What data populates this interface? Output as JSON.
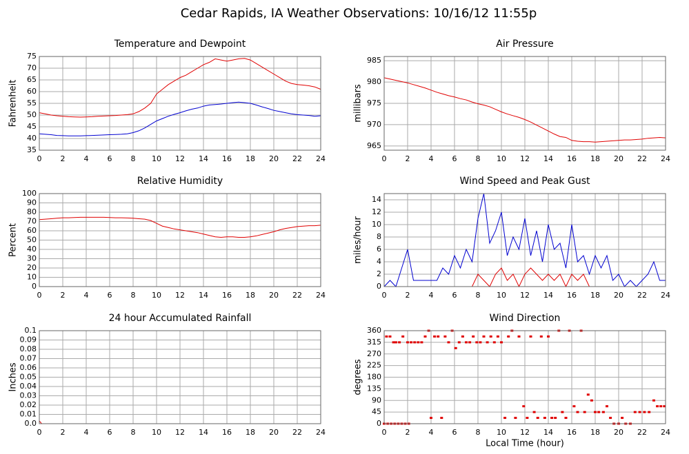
{
  "title": "Cedar Rapids, IA Weather Observations: 10/16/12 11:55p",
  "chart_data": [
    {
      "type": "line",
      "title": "Temperature and Dewpoint",
      "ylabel": "Fahrenheit",
      "x": [
        0,
        0.5,
        1,
        1.5,
        2,
        2.5,
        3,
        3.5,
        4,
        4.5,
        5,
        5.5,
        6,
        6.5,
        7,
        7.5,
        8,
        8.5,
        9,
        9.5,
        10,
        10.5,
        11,
        11.5,
        12,
        12.5,
        13,
        13.5,
        14,
        14.5,
        15,
        15.5,
        16,
        16.5,
        17,
        17.5,
        18,
        18.5,
        19,
        19.5,
        20,
        20.5,
        21,
        21.5,
        22,
        22.5,
        23,
        23.5,
        24
      ],
      "series": [
        {
          "color": "#e00000",
          "values": [
            51,
            50.5,
            50,
            49.7,
            49.5,
            49.3,
            49.2,
            49.1,
            49.2,
            49.3,
            49.5,
            49.6,
            49.7,
            49.8,
            50,
            50.2,
            50.5,
            51.5,
            53,
            55,
            59,
            61,
            63,
            64.5,
            66,
            67,
            68.5,
            70,
            71.5,
            72.5,
            74,
            73.5,
            73,
            73.5,
            74,
            74.2,
            73.5,
            72,
            70.5,
            69,
            67.5,
            66,
            64.5,
            63.5,
            63,
            62.8,
            62.5,
            62,
            61
          ]
        },
        {
          "color": "#0000d0",
          "values": [
            42,
            41.8,
            41.6,
            41.3,
            41.2,
            41.1,
            41.1,
            41.1,
            41.2,
            41.3,
            41.4,
            41.5,
            41.6,
            41.7,
            41.8,
            42,
            42.5,
            43.3,
            44.5,
            46,
            47.5,
            48.5,
            49.5,
            50.3,
            51,
            51.8,
            52.5,
            53,
            53.8,
            54.3,
            54.5,
            54.7,
            55,
            55.3,
            55.5,
            55.3,
            55,
            54.3,
            53.5,
            52.8,
            52,
            51.5,
            51,
            50.5,
            50.2,
            50,
            49.8,
            49.5,
            49.7
          ]
        }
      ],
      "xlim": [
        0,
        24
      ],
      "xticks": [
        0,
        2,
        4,
        6,
        8,
        10,
        12,
        14,
        16,
        18,
        20,
        22,
        24
      ],
      "ylim": [
        35,
        75
      ],
      "yticks": [
        35,
        40,
        45,
        50,
        55,
        60,
        65,
        70,
        75
      ],
      "grid": true
    },
    {
      "type": "line",
      "title": "Air Pressure",
      "ylabel": "millibars",
      "x": [
        0,
        0.5,
        1,
        1.5,
        2,
        2.5,
        3,
        3.5,
        4,
        4.5,
        5,
        5.5,
        6,
        6.5,
        7,
        7.5,
        8,
        8.5,
        9,
        9.5,
        10,
        10.5,
        11,
        11.5,
        12,
        12.5,
        13,
        13.5,
        14,
        14.5,
        15,
        15.5,
        16,
        16.5,
        17,
        17.5,
        18,
        18.5,
        19,
        19.5,
        20,
        20.5,
        21,
        21.5,
        22,
        22.5,
        23,
        23.5,
        24
      ],
      "series": [
        {
          "color": "#e00000",
          "values": [
            981,
            980.7,
            980.4,
            980.1,
            979.8,
            979.4,
            979,
            978.6,
            978.1,
            977.6,
            977.2,
            976.8,
            976.5,
            976.1,
            975.8,
            975.3,
            974.9,
            974.6,
            974.2,
            973.6,
            973,
            972.5,
            972.1,
            971.7,
            971.2,
            970.6,
            969.9,
            969.2,
            968.5,
            967.8,
            967.2,
            967,
            966.3,
            966.1,
            966,
            966,
            965.9,
            966,
            966.1,
            966.2,
            966.3,
            966.4,
            966.4,
            966.5,
            966.6,
            966.8,
            966.9,
            967,
            966.9
          ]
        }
      ],
      "xlim": [
        0,
        24
      ],
      "xticks": [
        0,
        2,
        4,
        6,
        8,
        10,
        12,
        14,
        16,
        18,
        20,
        22,
        24
      ],
      "ylim": [
        964,
        986
      ],
      "yticks": [
        965,
        970,
        975,
        980,
        985
      ],
      "grid": true
    },
    {
      "type": "line",
      "title": "Relative Humidity",
      "ylabel": "Percent",
      "x": [
        0,
        0.5,
        1,
        1.5,
        2,
        2.5,
        3,
        3.5,
        4,
        4.5,
        5,
        5.5,
        6,
        6.5,
        7,
        7.5,
        8,
        8.5,
        9,
        9.5,
        10,
        10.5,
        11,
        11.5,
        12,
        12.5,
        13,
        13.5,
        14,
        14.5,
        15,
        15.5,
        16,
        16.5,
        17,
        17.5,
        18,
        18.5,
        19,
        19.5,
        20,
        20.5,
        21,
        21.5,
        22,
        22.5,
        23,
        23.5,
        24
      ],
      "series": [
        {
          "color": "#e00000",
          "values": [
            72,
            72.5,
            73,
            73.5,
            74,
            74,
            74.3,
            74.5,
            74.5,
            74.5,
            74.5,
            74.5,
            74.3,
            74,
            74,
            73.8,
            73.5,
            73,
            72.5,
            71,
            68,
            65,
            63.5,
            62,
            61,
            60,
            59,
            58,
            56.5,
            55,
            53.5,
            53,
            53.5,
            53.5,
            53,
            53,
            53.5,
            54.5,
            56,
            57.5,
            59,
            61,
            62.5,
            63.5,
            64.5,
            65,
            65.5,
            65.5,
            66
          ]
        }
      ],
      "xlim": [
        0,
        24
      ],
      "xticks": [
        0,
        2,
        4,
        6,
        8,
        10,
        12,
        14,
        16,
        18,
        20,
        22,
        24
      ],
      "ylim": [
        0,
        100
      ],
      "yticks": [
        0,
        10,
        20,
        30,
        40,
        50,
        60,
        70,
        80,
        90,
        100
      ],
      "grid": true
    },
    {
      "type": "line",
      "title": "Wind Speed and Peak Gust",
      "ylabel": "miles/hour",
      "x": [
        0,
        0.5,
        1,
        1.5,
        2,
        2.5,
        3,
        3.5,
        4,
        4.5,
        5,
        5.5,
        6,
        6.5,
        7,
        7.5,
        8,
        8.5,
        9,
        9.5,
        10,
        10.5,
        11,
        11.5,
        12,
        12.5,
        13,
        13.5,
        14,
        14.5,
        15,
        15.5,
        16,
        16.5,
        17,
        17.5,
        18,
        18.5,
        19,
        19.5,
        20,
        20.5,
        21,
        21.5,
        22,
        22.5,
        23,
        23.5,
        24
      ],
      "series": [
        {
          "color": "#0000d0",
          "values": [
            0,
            1,
            0,
            3,
            6,
            1,
            1,
            1,
            1,
            1,
            3,
            2,
            5,
            3,
            6,
            4,
            11,
            15,
            7,
            9,
            12,
            5,
            8,
            6,
            11,
            5,
            9,
            4,
            10,
            6,
            7,
            3,
            10,
            4,
            5,
            2,
            5,
            3,
            5,
            1,
            2,
            0,
            1,
            0,
            1,
            2,
            4,
            1,
            1
          ]
        },
        {
          "color": "#e00000",
          "values": [
            0,
            0,
            0,
            0,
            0,
            0,
            0,
            0,
            0,
            0,
            0,
            0,
            0,
            0,
            0,
            0,
            2,
            1,
            0,
            2,
            3,
            1,
            2,
            0,
            2,
            3,
            2,
            1,
            2,
            1,
            2,
            0,
            2,
            1,
            2,
            0,
            0,
            0,
            0,
            0,
            0,
            0,
            0,
            0,
            0,
            0,
            0,
            0,
            0
          ]
        }
      ],
      "xlim": [
        0,
        24
      ],
      "xticks": [
        0,
        2,
        4,
        6,
        8,
        10,
        12,
        14,
        16,
        18,
        20,
        22,
        24
      ],
      "ylim": [
        0,
        15
      ],
      "yticks": [
        0,
        2,
        4,
        6,
        8,
        10,
        12,
        14
      ],
      "grid": true
    },
    {
      "type": "line",
      "title": "24 hour Accumulated Rainfall",
      "ylabel": "Inches",
      "x": [
        0,
        0.2,
        24
      ],
      "series": [
        {
          "color": "#e00000",
          "values": [
            0.003,
            0,
            0
          ]
        }
      ],
      "xlim": [
        0,
        24
      ],
      "xticks": [
        0,
        2,
        4,
        6,
        8,
        10,
        12,
        14,
        16,
        18,
        20,
        22,
        24
      ],
      "ylim": [
        0,
        0.1
      ],
      "yticks": [
        {
          "value": 0,
          "label": "0.0"
        },
        0.01,
        0.02,
        0.03,
        0.04,
        0.05,
        0.06,
        0.07,
        0.08,
        0.09,
        0.1
      ],
      "grid": true
    },
    {
      "type": "scatter",
      "title": "Wind Direction",
      "ylabel": "degrees",
      "xlabel": "Local Time (hour)",
      "x": [
        0,
        0.3,
        0.6,
        0.9,
        1.2,
        1.5,
        1.8,
        2.1,
        0.2,
        0.5,
        0.8,
        1.0,
        1.3,
        1.6,
        2.0,
        2.3,
        2.6,
        2.9,
        3.2,
        3.5,
        3.8,
        4.0,
        4.3,
        4.6,
        4.9,
        5.2,
        5.5,
        5.8,
        6.1,
        6.4,
        6.7,
        7.0,
        7.3,
        7.6,
        7.9,
        8.2,
        8.5,
        8.8,
        9.1,
        9.4,
        9.7,
        10.0,
        10.3,
        10.6,
        10.9,
        11.2,
        11.5,
        11.9,
        12.2,
        12.5,
        12.8,
        13.1,
        13.4,
        13.7,
        14.0,
        14.3,
        14.6,
        14.9,
        15.2,
        15.5,
        15.8,
        16.2,
        16.5,
        16.8,
        17.1,
        17.4,
        17.7,
        18.0,
        18.3,
        18.7,
        19.0,
        19.3,
        19.6,
        20.0,
        20.3,
        20.6,
        21.0,
        21.4,
        21.8,
        22.2,
        22.6,
        23.0,
        23.3,
        23.6,
        23.9
      ],
      "series": [
        {
          "color": "#e00000",
          "values": [
            0,
            0,
            0,
            0,
            0,
            0,
            0,
            0,
            337.5,
            337.5,
            315,
            315,
            315,
            337.5,
            315,
            315,
            315,
            315,
            315,
            337.5,
            360,
            22.5,
            337.5,
            337.5,
            22.5,
            337.5,
            315,
            360,
            292.5,
            315,
            337.5,
            315,
            315,
            337.5,
            315,
            315,
            337.5,
            315,
            337.5,
            315,
            337.5,
            315,
            22.5,
            337.5,
            360,
            22.5,
            337.5,
            67.5,
            22.5,
            337.5,
            45,
            22.5,
            337.5,
            22.5,
            337.5,
            22.5,
            22.5,
            360,
            45,
            22.5,
            360,
            67.5,
            45,
            360,
            45,
            112.5,
            90,
            45,
            45,
            45,
            67.5,
            22.5,
            0,
            0,
            22.5,
            0,
            0,
            45,
            45,
            45,
            45,
            90,
            67.5,
            67.5,
            67.5
          ]
        }
      ],
      "xlim": [
        0,
        24
      ],
      "xticks": [
        0,
        2,
        4,
        6,
        8,
        10,
        12,
        14,
        16,
        18,
        20,
        22,
        24
      ],
      "ylim": [
        0,
        360
      ],
      "yticks": [
        0,
        45,
        90,
        135,
        180,
        225,
        270,
        315,
        360
      ],
      "grid": true
    }
  ]
}
